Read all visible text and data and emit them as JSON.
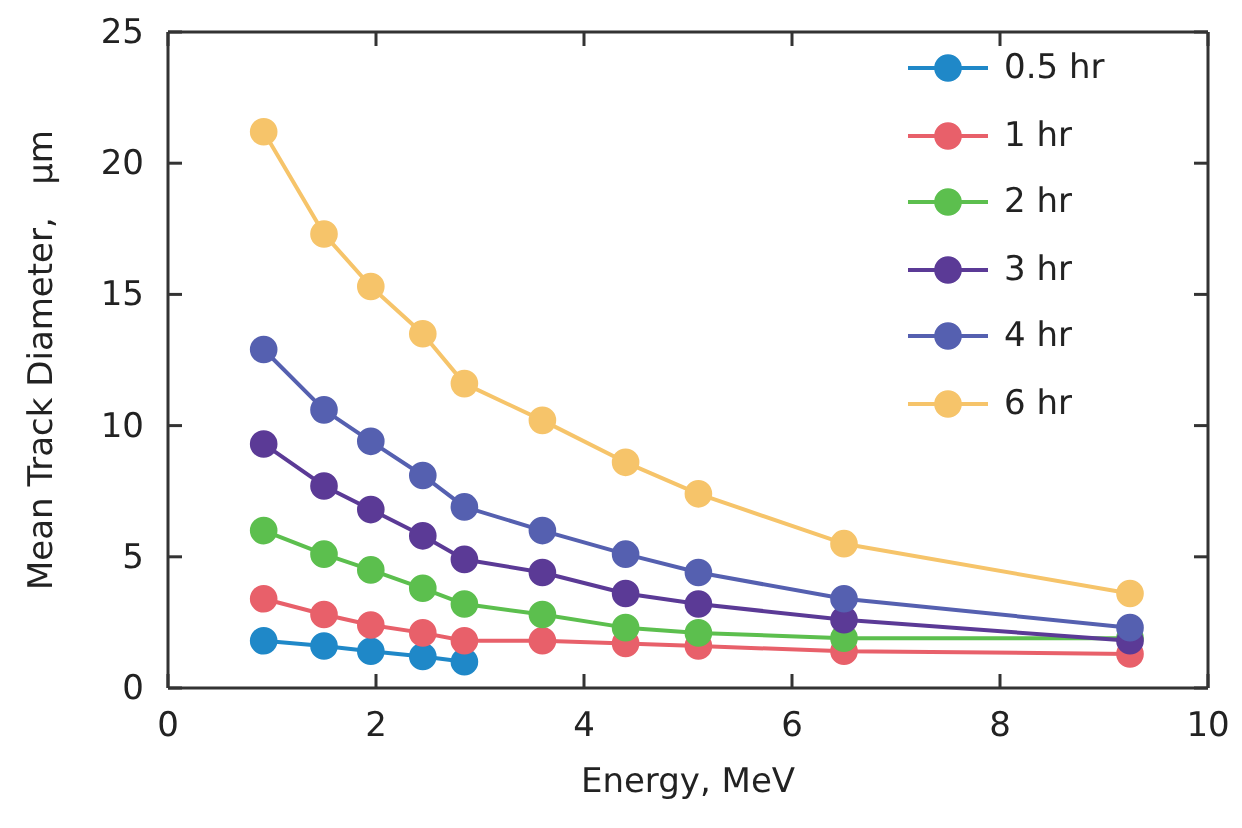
{
  "chart_data": {
    "type": "line",
    "xlabel": "Energy, MeV",
    "ylabel": "Mean Track Diameter,   µm",
    "xlim": [
      0,
      10
    ],
    "ylim": [
      0,
      25
    ],
    "xticks": [
      0,
      2,
      4,
      6,
      8,
      10
    ],
    "yticks": [
      0,
      5,
      10,
      15,
      20,
      25
    ],
    "grid": false,
    "legend": "top right",
    "marker": "circle",
    "line_style": "solid",
    "x": [
      0.92,
      1.5,
      1.95,
      2.45,
      2.85,
      3.6,
      4.4,
      5.1,
      6.5,
      9.25
    ],
    "series": [
      {
        "name": "0.5 hr",
        "color": "#1f88c8",
        "x": [
          0.92,
          1.5,
          1.95,
          2.45,
          2.85
        ],
        "values": [
          1.8,
          1.6,
          1.4,
          1.2,
          1.0
        ]
      },
      {
        "name": "1 hr",
        "color": "#e8606a",
        "values": [
          3.4,
          2.8,
          2.4,
          2.1,
          1.8,
          1.8,
          1.7,
          1.6,
          1.4,
          1.3
        ]
      },
      {
        "name": "2 hr",
        "color": "#5cbf4e",
        "values": [
          6.0,
          5.1,
          4.5,
          3.8,
          3.2,
          2.8,
          2.3,
          2.1,
          1.9,
          1.9
        ]
      },
      {
        "name": "3 hr",
        "color": "#5b3a96",
        "values": [
          9.3,
          7.7,
          6.8,
          5.8,
          4.9,
          4.4,
          3.6,
          3.2,
          2.6,
          1.8
        ]
      },
      {
        "name": "4 hr",
        "color": "#5560b0",
        "values": [
          12.9,
          10.6,
          9.4,
          8.1,
          6.9,
          6.0,
          5.1,
          4.4,
          3.4,
          2.3
        ]
      },
      {
        "name": "6 hr",
        "color": "#f6c46a",
        "values": [
          21.2,
          17.3,
          15.3,
          13.5,
          11.6,
          10.2,
          8.6,
          7.4,
          5.5,
          3.6
        ]
      }
    ]
  }
}
